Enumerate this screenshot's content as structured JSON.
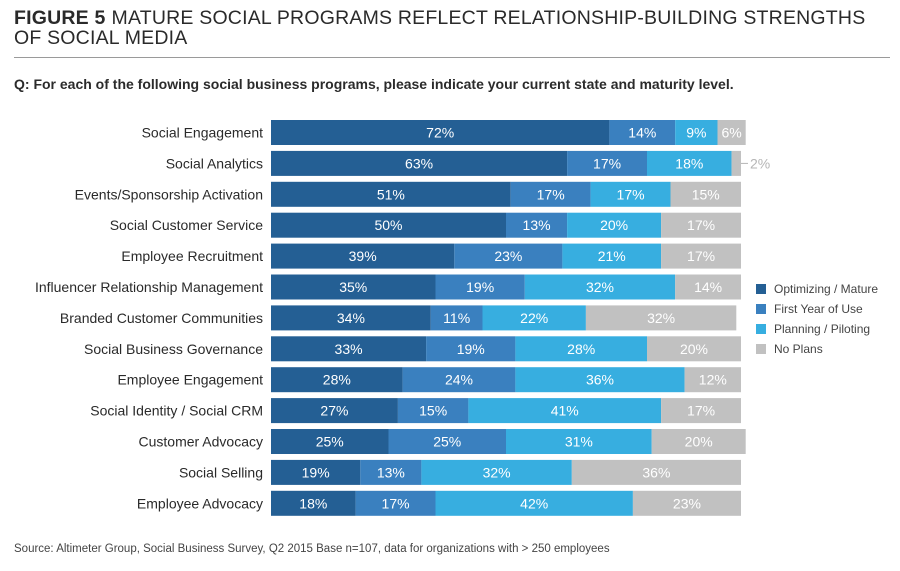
{
  "figure_label": "FIGURE 5",
  "figure_title": "MATURE SOCIAL PROGRAMS REFLECT RELATIONSHIP-BUILDING STRENGTHS OF SOCIAL MEDIA",
  "question": "Q: For each of the following social business programs, please indicate your current state and maturity level.",
  "source": "Source: Altimeter Group, Social Business Survey, Q2 2015 Base n=107, data for organizations with > 250 employees",
  "colors": {
    "optimizing": "#245f94",
    "first_year": "#3a80bf",
    "planning": "#37aee0",
    "no_plans": "#c1c1c1"
  },
  "chart_data": {
    "type": "bar",
    "orientation": "horizontal",
    "stacked": true,
    "unit": "%",
    "xlim": [
      0,
      100
    ],
    "categories": [
      "Social Engagement",
      "Social Analytics",
      "Events/Sponsorship Activation",
      "Social Customer Service",
      "Employee Recruitment",
      "Influencer Relationship Management",
      "Branded Customer Communities",
      "Social Business Governance",
      "Employee Engagement",
      "Social Identity / Social CRM",
      "Customer Advocacy",
      "Social Selling",
      "Employee Advocacy"
    ],
    "series": [
      {
        "name": "Optimizing / Mature",
        "values": [
          72,
          63,
          51,
          50,
          39,
          35,
          34,
          33,
          28,
          27,
          25,
          19,
          18
        ]
      },
      {
        "name": "First Year of Use",
        "values": [
          14,
          17,
          17,
          13,
          23,
          19,
          11,
          19,
          24,
          15,
          25,
          13,
          17
        ]
      },
      {
        "name": "Planning / Piloting",
        "values": [
          9,
          18,
          17,
          20,
          21,
          32,
          22,
          28,
          36,
          41,
          31,
          32,
          42
        ]
      },
      {
        "name": "No Plans",
        "values": [
          6,
          2,
          15,
          17,
          17,
          14,
          32,
          20,
          12,
          17,
          20,
          36,
          23
        ]
      }
    ],
    "outside_labels": [
      {
        "category": "Social Analytics",
        "series": "No Plans",
        "text": "2%"
      }
    ],
    "legend": "right"
  }
}
